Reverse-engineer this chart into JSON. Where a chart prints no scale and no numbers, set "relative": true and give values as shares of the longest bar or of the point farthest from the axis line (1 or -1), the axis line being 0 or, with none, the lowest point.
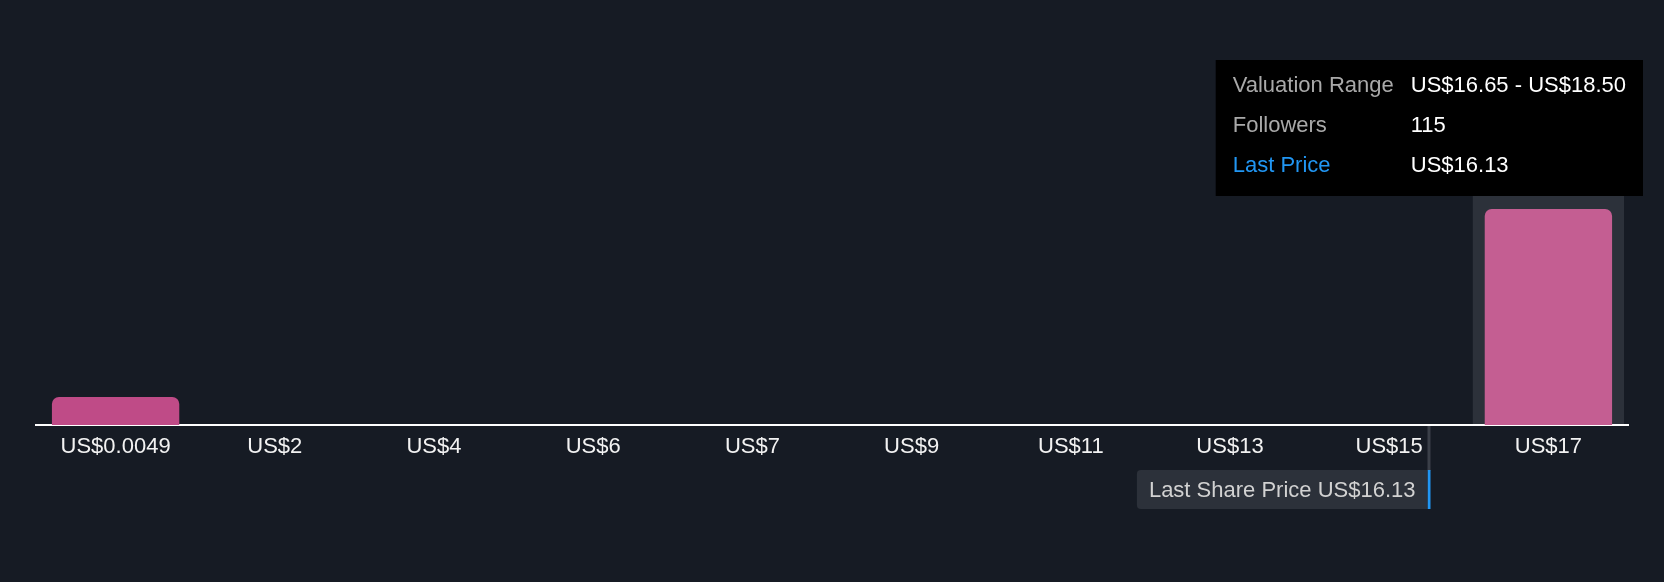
{
  "chart_data": {
    "type": "bar",
    "categories": [
      "US$0.0049",
      "US$2",
      "US$4",
      "US$6",
      "US$7",
      "US$9",
      "US$11",
      "US$13",
      "US$15",
      "US$17"
    ],
    "values": [
      0.13,
      0,
      0,
      0,
      0,
      0,
      0,
      0,
      0,
      1
    ],
    "colors": [
      "#bf4b87",
      "#bf4b87",
      "#bf4b87",
      "#bf4b87",
      "#bf4b87",
      "#bf4b87",
      "#bf4b87",
      "#bf4b87",
      "#bf4b87",
      "#c45e92"
    ],
    "relative": true,
    "bands": [
      {
        "axis": "x",
        "from": "US$17",
        "to": "US$17",
        "color": "#2c313a"
      }
    ],
    "annotations": [
      "Last Share Price US$16.13",
      "Valuation Range",
      "US$16.65 - US$18.50",
      "Followers",
      "115",
      "Last Price",
      "US$16.13"
    ]
  }
}
